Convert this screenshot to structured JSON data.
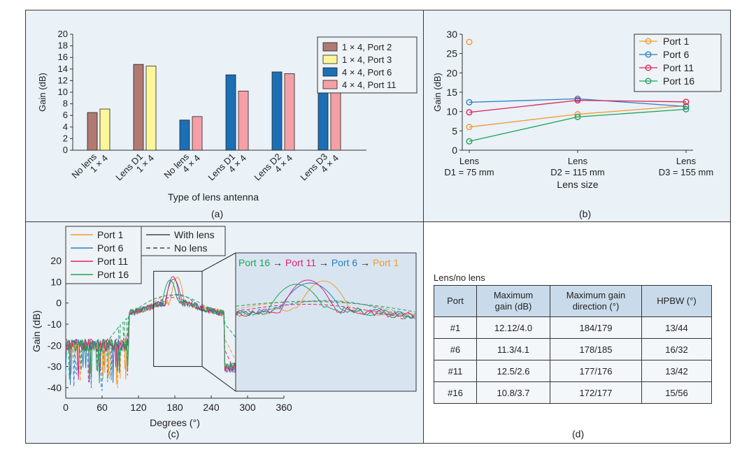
{
  "chart_data": [
    {
      "panel": "a",
      "type": "bar",
      "panel_label": "(a)",
      "xlabel": "Type of lens antenna",
      "ylabel": "Gain (dB)",
      "ylim": [
        0,
        20
      ],
      "yticks": [
        0,
        2,
        4,
        6,
        8,
        10,
        12,
        14,
        16,
        18,
        20
      ],
      "legend_position": "top-right",
      "grid": false,
      "groups": [
        {
          "label_line1": "No lens",
          "label_line2": "1 × 4",
          "bars": [
            {
              "series": 0,
              "value": 6.5
            },
            {
              "series": 1,
              "value": 7.1
            }
          ]
        },
        {
          "label_line1": "Lens D1",
          "label_line2": "1 × 4",
          "bars": [
            {
              "series": 0,
              "value": 14.8
            },
            {
              "series": 1,
              "value": 14.5
            }
          ]
        },
        {
          "label_line1": "No lens",
          "label_line2": "4 × 4",
          "bars": [
            {
              "series": 2,
              "value": 5.2
            },
            {
              "series": 3,
              "value": 5.8
            }
          ]
        },
        {
          "label_line1": "Lens D1",
          "label_line2": "4 × 4",
          "bars": [
            {
              "series": 2,
              "value": 13.0
            },
            {
              "series": 3,
              "value": 10.2
            }
          ]
        },
        {
          "label_line1": "Lens D2",
          "label_line2": "4 × 4",
          "bars": [
            {
              "series": 2,
              "value": 13.5
            },
            {
              "series": 3,
              "value": 13.2
            }
          ]
        },
        {
          "label_line1": "Lens D3",
          "label_line2": "4 × 4",
          "bars": [
            {
              "series": 2,
              "value": 13.1
            },
            {
              "series": 3,
              "value": 12.6
            }
          ]
        }
      ],
      "series": [
        {
          "name": "1 × 4, Port 2",
          "color": "#b07a72"
        },
        {
          "name": "1 × 4, Port 3",
          "color": "#fdf79a"
        },
        {
          "name": "4 × 4, Port 6",
          "color": "#1b6fb5"
        },
        {
          "name": "4 × 4, Port 11",
          "color": "#f4a0a6"
        }
      ]
    },
    {
      "panel": "b",
      "type": "line",
      "panel_label": "(b)",
      "xlabel": "Lens size",
      "ylabel": "Gain (dB)",
      "ylim": [
        0,
        30
      ],
      "yticks": [
        0,
        5,
        10,
        15,
        20,
        25,
        30
      ],
      "legend_position": "top-right",
      "categories": [
        {
          "line1": "Lens",
          "line2": "D1 = 75 mm"
        },
        {
          "line1": "Lens",
          "line2": "D2 = 115 mm"
        },
        {
          "line1": "Lens",
          "line2": "D3 = 155 mm"
        }
      ],
      "series": [
        {
          "name": "Port 1",
          "color": "#f39a2e",
          "values": [
            6.0,
            9.3,
            11.5
          ]
        },
        {
          "name": "Port 6",
          "color": "#2a7fc0",
          "values": [
            12.4,
            13.3,
            11.3
          ]
        },
        {
          "name": "Port 11",
          "color": "#e0205a",
          "values": [
            9.8,
            12.9,
            12.5
          ]
        },
        {
          "name": "Port 16",
          "color": "#1ea35a",
          "values": [
            2.3,
            8.6,
            10.6
          ]
        }
      ],
      "outlier": {
        "series": 0,
        "x_index": 0,
        "value": 28
      }
    },
    {
      "panel": "c",
      "type": "line",
      "panel_label": "(c)",
      "xlabel": "Degrees (°)",
      "ylabel": "Gain (dB)",
      "xlim": [
        0,
        360
      ],
      "ylim": [
        -45,
        25
      ],
      "xticks": [
        0,
        60,
        120,
        180,
        240,
        300,
        360
      ],
      "yticks": [
        -40,
        -30,
        -20,
        -10,
        0,
        10,
        20
      ],
      "legend_ports": [
        {
          "name": "Port 1",
          "color": "#f39a2e"
        },
        {
          "name": "Port 6",
          "color": "#2a7fc0"
        },
        {
          "name": "Port 11",
          "color": "#e0207a"
        },
        {
          "name": "Port 16",
          "color": "#1ea35a"
        }
      ],
      "legend_styles": [
        {
          "name": "With lens",
          "dash": false
        },
        {
          "name": "No lens",
          "dash": true
        }
      ],
      "peaks_with_lens": [
        {
          "port": "Port 1",
          "peak_deg": 184,
          "peak_gain": 12.12,
          "hpbw": 13
        },
        {
          "port": "Port 6",
          "peak_deg": 178,
          "peak_gain": 11.3,
          "hpbw": 16
        },
        {
          "port": "Port 11",
          "peak_deg": 177,
          "peak_gain": 12.5,
          "hpbw": 13
        },
        {
          "port": "Port 16",
          "peak_deg": 172,
          "peak_gain": 10.8,
          "hpbw": 15
        }
      ],
      "peaks_no_lens": [
        {
          "port": "Port 1",
          "peak_deg": 179,
          "peak_gain": 4.0,
          "hpbw": 44
        },
        {
          "port": "Port 6",
          "peak_deg": 185,
          "peak_gain": 4.1,
          "hpbw": 32
        },
        {
          "port": "Port 11",
          "peak_deg": 176,
          "peak_gain": 2.6,
          "hpbw": 42
        },
        {
          "port": "Port 16",
          "peak_deg": 177,
          "peak_gain": 3.7,
          "hpbw": 56
        }
      ],
      "inset": {
        "title_parts": [
          {
            "text": "Port 16",
            "color": "#1ea35a"
          },
          {
            "text": " → ",
            "color": "#222222"
          },
          {
            "text": "Port 11",
            "color": "#e0207a"
          },
          {
            "text": " → ",
            "color": "#222222"
          },
          {
            "text": "Port 6",
            "color": "#2a7fc0"
          },
          {
            "text": " → ",
            "color": "#222222"
          },
          {
            "text": "Port 1",
            "color": "#f39a2e"
          }
        ],
        "zoom_x_range": [
          145,
          225
        ],
        "zoom_y_range": [
          -30,
          15
        ]
      }
    }
  ],
  "table": {
    "panel_label": "(d)",
    "caption": "Lens/no lens",
    "headers": [
      {
        "line1": "Port",
        "line2": ""
      },
      {
        "line1": "Maximum",
        "line2": "gain (dB)"
      },
      {
        "line1": "Maximum gain",
        "line2": "direction (°)"
      },
      {
        "line1": "HPBW (°)",
        "line2": ""
      }
    ],
    "rows": [
      [
        "#1",
        "12.12/4.0",
        "184/179",
        "13/44"
      ],
      [
        "#6",
        "11.3/4.1",
        "178/185",
        "16/32"
      ],
      [
        "#11",
        "12.5/2.6",
        "177/176",
        "13/42"
      ],
      [
        "#16",
        "10.8/3.7",
        "172/177",
        "15/56"
      ]
    ]
  }
}
